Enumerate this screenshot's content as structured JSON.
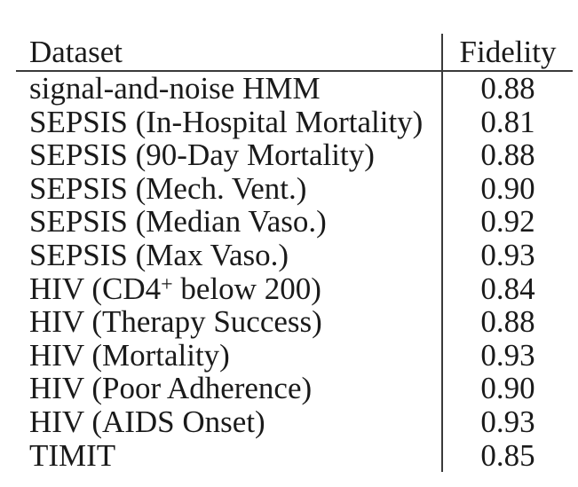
{
  "table": {
    "header": {
      "dataset": "Dataset",
      "fidelity": "Fidelity"
    },
    "rows": [
      {
        "dataset": [
          {
            "t": "signal-and-noise HMM"
          }
        ],
        "fidelity": "0.88"
      },
      {
        "dataset": [
          {
            "t": "SEPSIS (In-Hospital Mortality)"
          }
        ],
        "fidelity": "0.81"
      },
      {
        "dataset": [
          {
            "t": "SEPSIS (90-Day Mortality)"
          }
        ],
        "fidelity": "0.88"
      },
      {
        "dataset": [
          {
            "t": "SEPSIS (Mech. Vent.)"
          }
        ],
        "fidelity": "0.90"
      },
      {
        "dataset": [
          {
            "t": "SEPSIS (Median Vaso.)"
          }
        ],
        "fidelity": "0.92"
      },
      {
        "dataset": [
          {
            "t": "SEPSIS (Max Vaso.)"
          }
        ],
        "fidelity": "0.93"
      },
      {
        "dataset": [
          {
            "t": "HIV (CD4"
          },
          {
            "t": "+",
            "sup": true
          },
          {
            "t": " below 200)"
          }
        ],
        "fidelity": "0.84"
      },
      {
        "dataset": [
          {
            "t": "HIV (Therapy Success)"
          }
        ],
        "fidelity": "0.88"
      },
      {
        "dataset": [
          {
            "t": "HIV (Mortality)"
          }
        ],
        "fidelity": "0.93"
      },
      {
        "dataset": [
          {
            "t": "HIV (Poor Adherence)"
          }
        ],
        "fidelity": "0.90"
      },
      {
        "dataset": [
          {
            "t": "HIV (AIDS Onset)"
          }
        ],
        "fidelity": "0.93"
      },
      {
        "dataset": [
          {
            "t": "TIMIT"
          }
        ],
        "fidelity": "0.85"
      }
    ],
    "colors": {
      "text": "#1a1a1a",
      "line": "#3a3a3a",
      "background": "#ffffff"
    }
  }
}
